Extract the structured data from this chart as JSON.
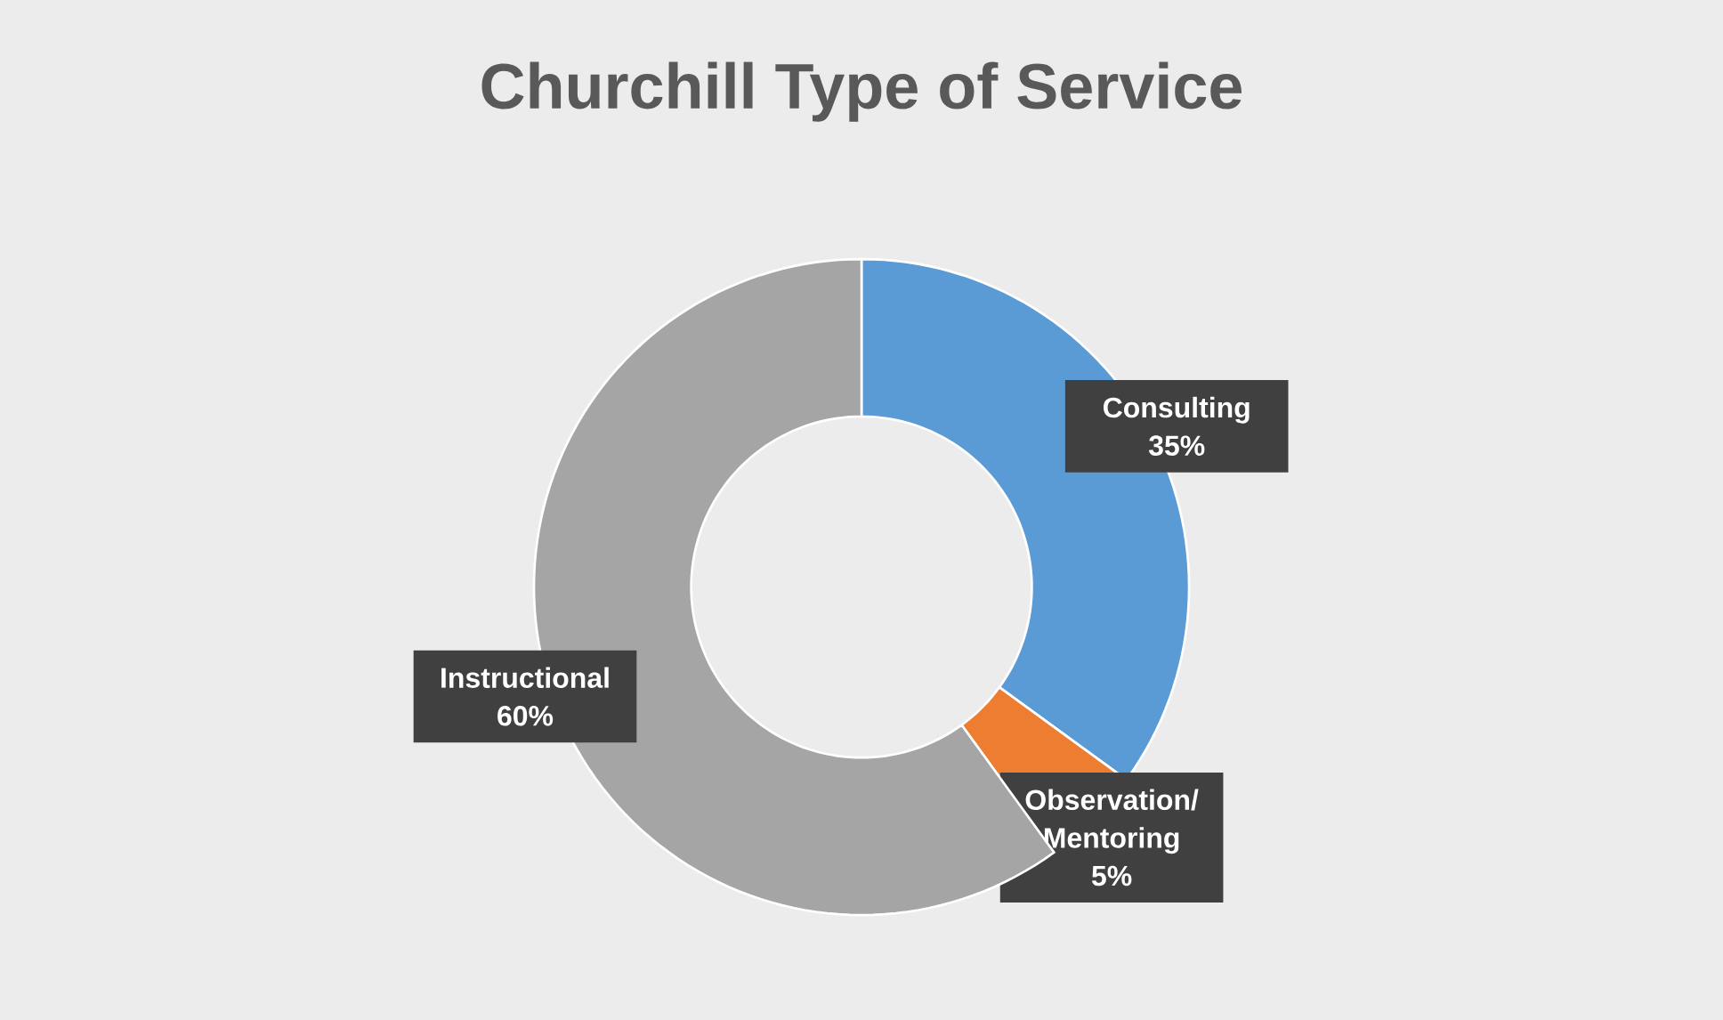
{
  "chart_data": {
    "type": "donut",
    "title": "Churchill Type of Service",
    "categories": [
      "Consulting",
      "Observation/ Mentoring",
      "Instructional"
    ],
    "values": [
      35,
      5,
      60
    ],
    "colors": [
      "#5b9bd5",
      "#ed7d31",
      "#a5a5a5"
    ],
    "value_labels": [
      "35%",
      "5%",
      "60%"
    ]
  }
}
